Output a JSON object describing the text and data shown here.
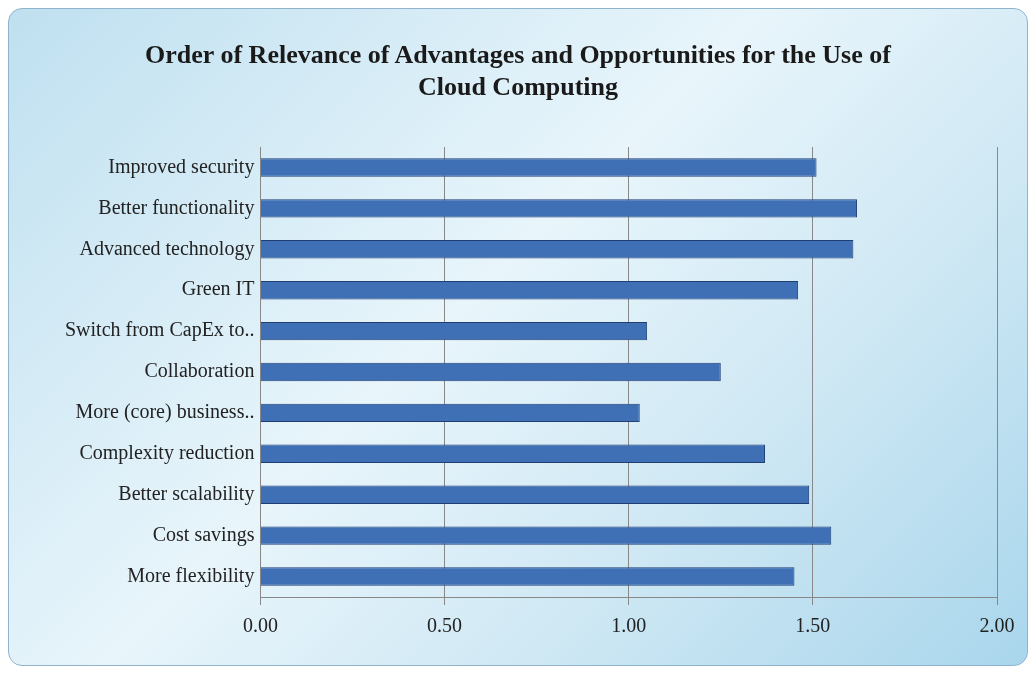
{
  "chart_data": {
    "type": "bar",
    "orientation": "horizontal",
    "title": "Order of Relevance  of Advantages and Opportunities for the Use of Cloud Computing",
    "categories": [
      "Improved security",
      "Better functionality",
      "Advanced technology",
      "Green IT",
      "Switch from CapEx to..",
      "Collaboration",
      "More (core) business..",
      "Complexity reduction",
      "Better scalability",
      "Cost savings",
      "More flexibility"
    ],
    "values": [
      1.51,
      1.62,
      1.61,
      1.46,
      1.05,
      1.25,
      1.03,
      1.37,
      1.49,
      1.55,
      1.45
    ],
    "color": "#3f6fb5",
    "xlim": [
      0,
      2
    ],
    "xticks": [
      {
        "value": 0,
        "label": "0.00"
      },
      {
        "value": 0.5,
        "label": "0.50"
      },
      {
        "value": 1,
        "label": "1.00"
      },
      {
        "value": 1.5,
        "label": "1.50"
      },
      {
        "value": 2,
        "label": "2.00"
      }
    ],
    "grid": "x",
    "legend": false
  }
}
